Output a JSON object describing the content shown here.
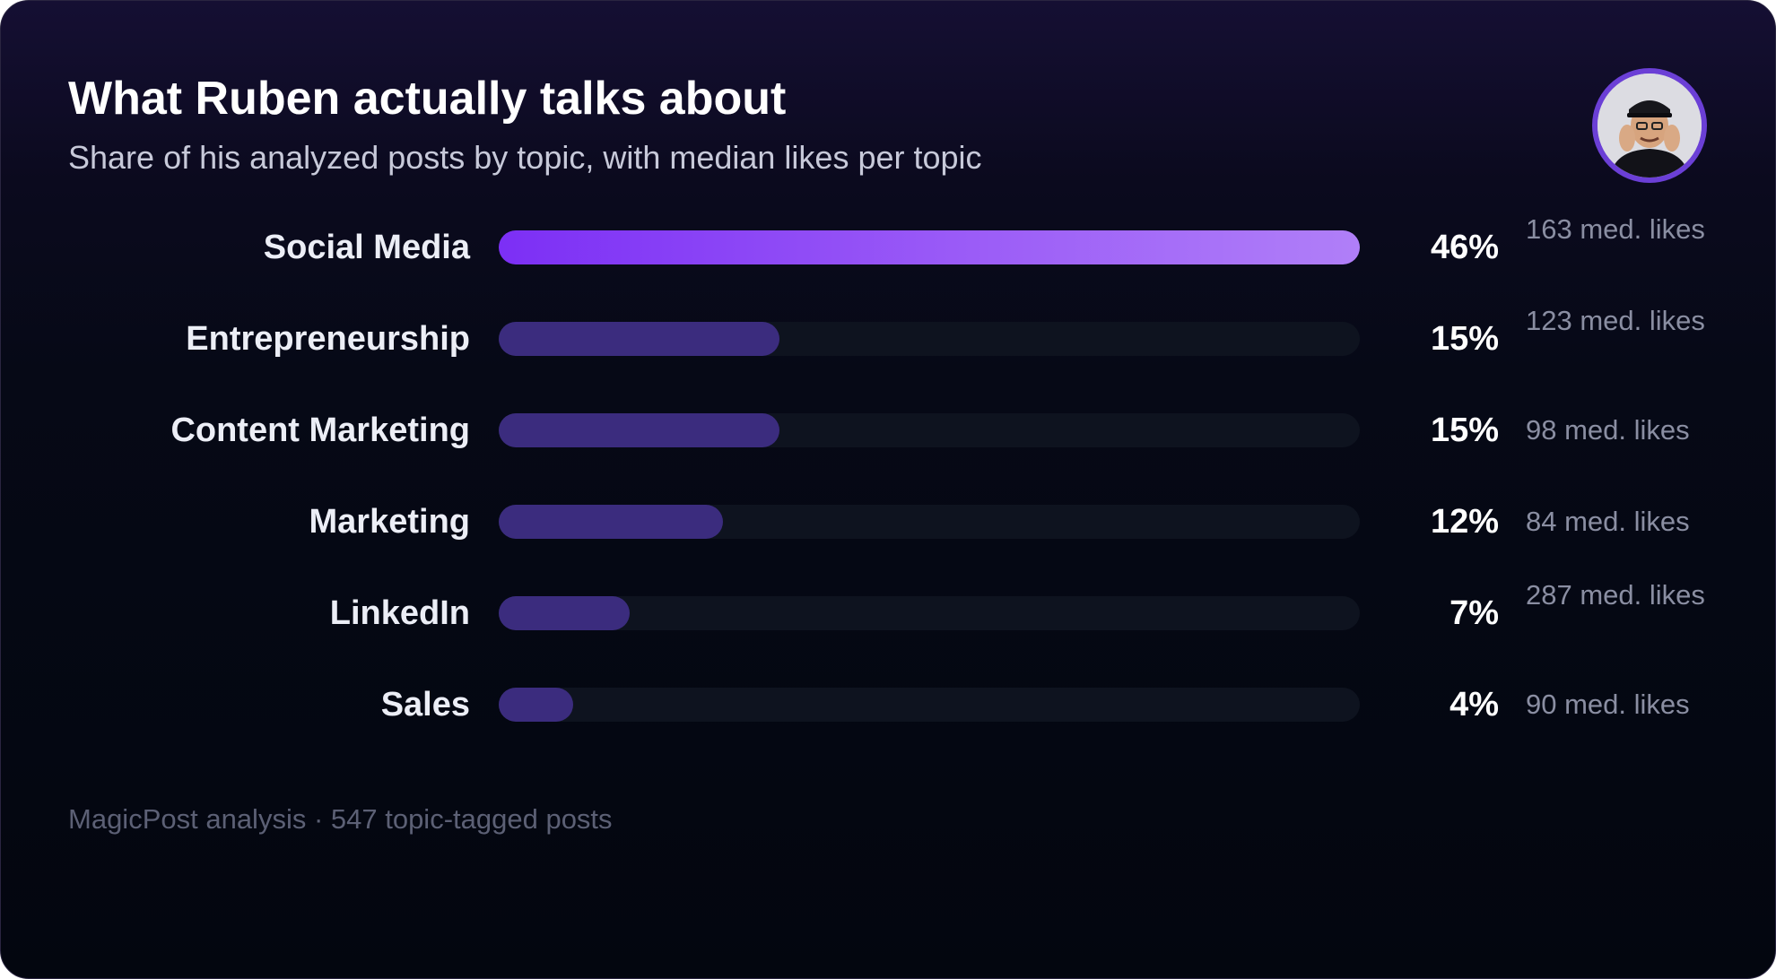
{
  "header": {
    "title": "What Ruben actually talks about",
    "subtitle": "Share of his analyzed posts by topic, with median likes per topic",
    "avatar_icon": "profile-photo"
  },
  "colors": {
    "top_bar_start": "#7c2ff5",
    "top_bar_end": "#b07ff8",
    "bar_fill": "#3b2c7e",
    "track": "#0e131f"
  },
  "chart_data": {
    "type": "bar",
    "orientation": "horizontal",
    "categories": [
      "Social Media",
      "Entrepreneurship",
      "Content Marketing",
      "Marketing",
      "LinkedIn",
      "Sales"
    ],
    "values": [
      46,
      15,
      15,
      12,
      7,
      4
    ],
    "value_labels": [
      "46%",
      "15%",
      "15%",
      "12%",
      "7%",
      "4%"
    ],
    "median_likes": [
      163,
      123,
      98,
      84,
      287,
      90
    ],
    "median_likes_labels": [
      "163 med. likes",
      "123 med. likes",
      "98 med. likes",
      "84 med. likes",
      "287 med. likes",
      "90 med. likes"
    ],
    "xlim": [
      0,
      46
    ],
    "grid": false
  },
  "footer": {
    "note": "MagicPost analysis · 547 topic-tagged posts"
  }
}
